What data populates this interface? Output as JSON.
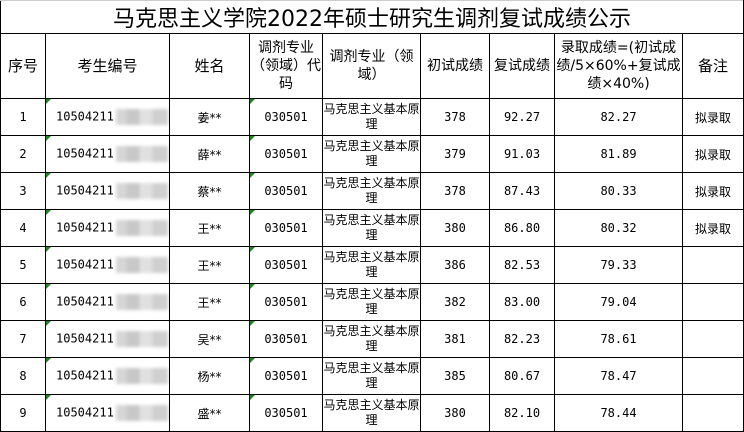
{
  "title": "马克思主义学院2022年硕士研究生调剂复试成绩公示",
  "headers": [
    "序号",
    "考生编号",
    "姓名",
    "调剂专业（领域）代码",
    "调剂专业（领域）",
    "初试成绩",
    "复试成绩",
    "录取成绩=(初试成绩/5×60%+复试成绩×40%)",
    "备注"
  ],
  "rows": [
    {
      "no": "1",
      "id": "10504211",
      "name": "姜**",
      "code": "030501",
      "major": "马克思主义基本原理",
      "initial": "378",
      "retest": "92.27",
      "final": "82.27",
      "note": "拟录取"
    },
    {
      "no": "2",
      "id": "10504211",
      "name": "薛**",
      "code": "030501",
      "major": "马克思主义基本原理",
      "initial": "379",
      "retest": "91.03",
      "final": "81.89",
      "note": "拟录取"
    },
    {
      "no": "3",
      "id": "10504211",
      "name": "蔡**",
      "code": "030501",
      "major": "马克思主义基本原理",
      "initial": "378",
      "retest": "87.43",
      "final": "80.33",
      "note": "拟录取"
    },
    {
      "no": "4",
      "id": "10504211",
      "name": "王**",
      "code": "030501",
      "major": "马克思主义基本原理",
      "initial": "380",
      "retest": "86.80",
      "final": "80.32",
      "note": "拟录取"
    },
    {
      "no": "5",
      "id": "10504211",
      "name": "王**",
      "code": "030501",
      "major": "马克思主义基本原理",
      "initial": "386",
      "retest": "82.53",
      "final": "79.33",
      "note": ""
    },
    {
      "no": "6",
      "id": "10504211",
      "name": "王**",
      "code": "030501",
      "major": "马克思主义基本原理",
      "initial": "382",
      "retest": "83.00",
      "final": "79.04",
      "note": ""
    },
    {
      "no": "7",
      "id": "10504211",
      "name": "吴**",
      "code": "030501",
      "major": "马克思主义基本原理",
      "initial": "381",
      "retest": "82.23",
      "final": "78.61",
      "note": ""
    },
    {
      "no": "8",
      "id": "10504211",
      "name": "杨**",
      "code": "030501",
      "major": "马克思主义基本原理",
      "initial": "385",
      "retest": "80.67",
      "final": "78.47",
      "note": ""
    },
    {
      "no": "9",
      "id": "10504211",
      "name": "盛**",
      "code": "030501",
      "major": "马克思主义基本原理",
      "initial": "380",
      "retest": "82.10",
      "final": "78.44",
      "note": ""
    }
  ]
}
